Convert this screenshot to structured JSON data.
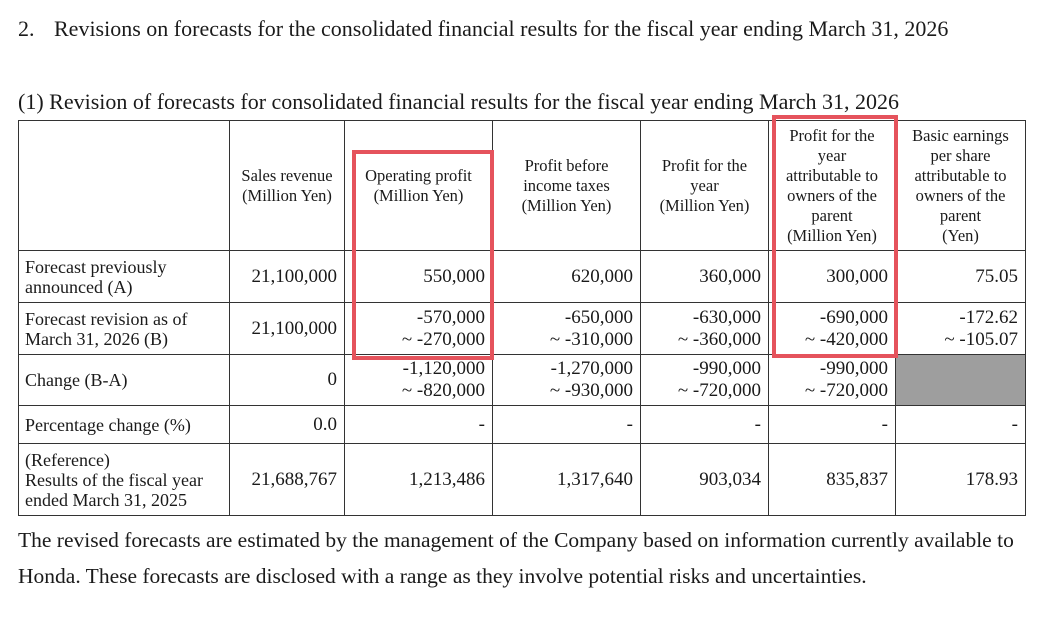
{
  "heading": {
    "number": "2.",
    "text": "Revisions on forecasts for the consolidated financial results for the fiscal year ending March 31, 2026"
  },
  "subheading": "(1) Revision of forecasts for consolidated financial results for the fiscal year ending March 31, 2026",
  "table": {
    "headers": [
      "",
      "Sales revenue\n(Million Yen)",
      "Operating profit\n(Million Yen)",
      "Profit before\nincome taxes\n(Million Yen)",
      "Profit for the\nyear\n(Million Yen)",
      "Profit for the\nyear\nattributable to\nowners of the\nparent\n(Million Yen)",
      "Basic earnings\nper share\nattributable to\nowners of the\nparent\n(Yen)"
    ],
    "rows": [
      {
        "label": "Forecast previously\nannounced (A)",
        "cells": [
          "21,100,000",
          "550,000",
          "620,000",
          "360,000",
          "300,000",
          "75.05"
        ]
      },
      {
        "label": "Forecast revision as of\nMarch 31, 2026 (B)",
        "cells": [
          "21,100,000",
          "-570,000\n~ -270,000",
          "-650,000\n~ -310,000",
          "-630,000\n~ -360,000",
          "-690,000\n~ -420,000",
          "-172.62\n~ -105.07"
        ]
      },
      {
        "label": "Change (B-A)",
        "cells": [
          "0",
          "-1,120,000\n~ -820,000",
          "-1,270,000\n~ -930,000",
          "-990,000\n~ -720,000",
          "-990,000\n~ -720,000",
          ""
        ]
      },
      {
        "label": "Percentage change (%)",
        "cells": [
          "0.0",
          "-",
          "-",
          "-",
          "-",
          "-"
        ]
      },
      {
        "label": "(Reference)\nResults of the fiscal year\nended March 31, 2025",
        "cells": [
          "21,688,767",
          "1,213,486",
          "1,317,640",
          "903,034",
          "835,837",
          "178.93"
        ]
      }
    ]
  },
  "footer": "The revised forecasts are estimated by the management of the Company based on information currently available to Honda. These forecasts are disclosed with a range as they involve potential risks and uncertainties.",
  "colors": {
    "highlight": "#e5535c",
    "shaded_cell": "#9e9e9e",
    "border": "#333333"
  }
}
